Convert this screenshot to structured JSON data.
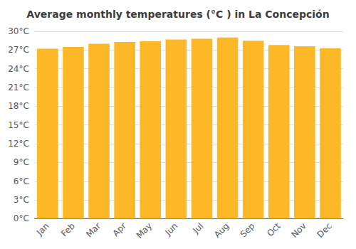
{
  "chart_data": {
    "type": "bar",
    "title": "Average monthly temperatures (°C ) in La Concepción",
    "categories": [
      "Jan",
      "Feb",
      "Mar",
      "Apr",
      "May",
      "Jun",
      "Jul",
      "Aug",
      "Sep",
      "Oct",
      "Nov",
      "Dec"
    ],
    "values": [
      27.2,
      27.5,
      28.0,
      28.3,
      28.4,
      28.7,
      28.8,
      29.0,
      28.5,
      27.8,
      27.6,
      27.3
    ],
    "color": "#FDB827",
    "ylim": [
      0,
      30
    ],
    "yticks": [
      {
        "value": 0,
        "label": "0°C"
      },
      {
        "value": 3,
        "label": "3°C"
      },
      {
        "value": 6,
        "label": "6°C"
      },
      {
        "value": 9,
        "label": "9°C"
      },
      {
        "value": 12,
        "label": "12°C"
      },
      {
        "value": 15,
        "label": "15°C"
      },
      {
        "value": 18,
        "label": "18°C"
      },
      {
        "value": 21,
        "label": "21°C"
      },
      {
        "value": 24,
        "label": "24°C"
      },
      {
        "value": 27,
        "label": "27°C"
      },
      {
        "value": 30,
        "label": "30°C"
      }
    ],
    "grid": true
  }
}
